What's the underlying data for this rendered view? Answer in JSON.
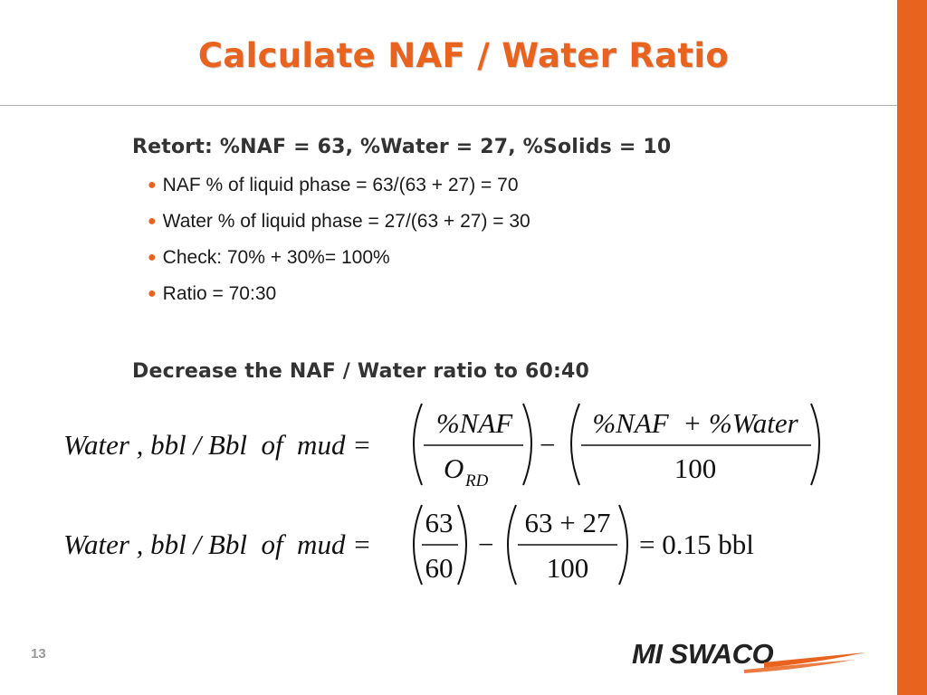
{
  "slide": {
    "title": "Calculate NAF / Water Ratio",
    "retort_heading": "Retort: %NAF = 63, %Water = 27, %Solids = 10",
    "bullets": [
      "NAF % of liquid phase = 63/(63 + 27) = 70",
      "Water % of liquid phase = 27/(63 + 27) = 30",
      "Check: 70% + 30%= 100%",
      "Ratio = 70:30"
    ],
    "decrease_heading": "Decrease the NAF / Water ratio to 60:40",
    "page_number": "13",
    "logo_text": "MI SWACO"
  },
  "equation1": {
    "lhs": "Water , bbl / Bbl  of  mud =",
    "frac1_num": "%NAF",
    "frac1_den": "O",
    "frac1_den_sub": "RD",
    "minus": "−",
    "frac2_num": "%NAF  + %Water",
    "frac2_den": "100"
  },
  "equation2": {
    "lhs": "Water , bbl / Bbl  of  mud =",
    "frac1_num": "63",
    "frac1_den": "60",
    "minus": "−",
    "frac2_num": "63 + 27",
    "frac2_den": "100",
    "result": "= 0.15 bbl"
  },
  "colors": {
    "accent": "#e8641e",
    "text": "#333333",
    "logo_dark": "#222222"
  }
}
